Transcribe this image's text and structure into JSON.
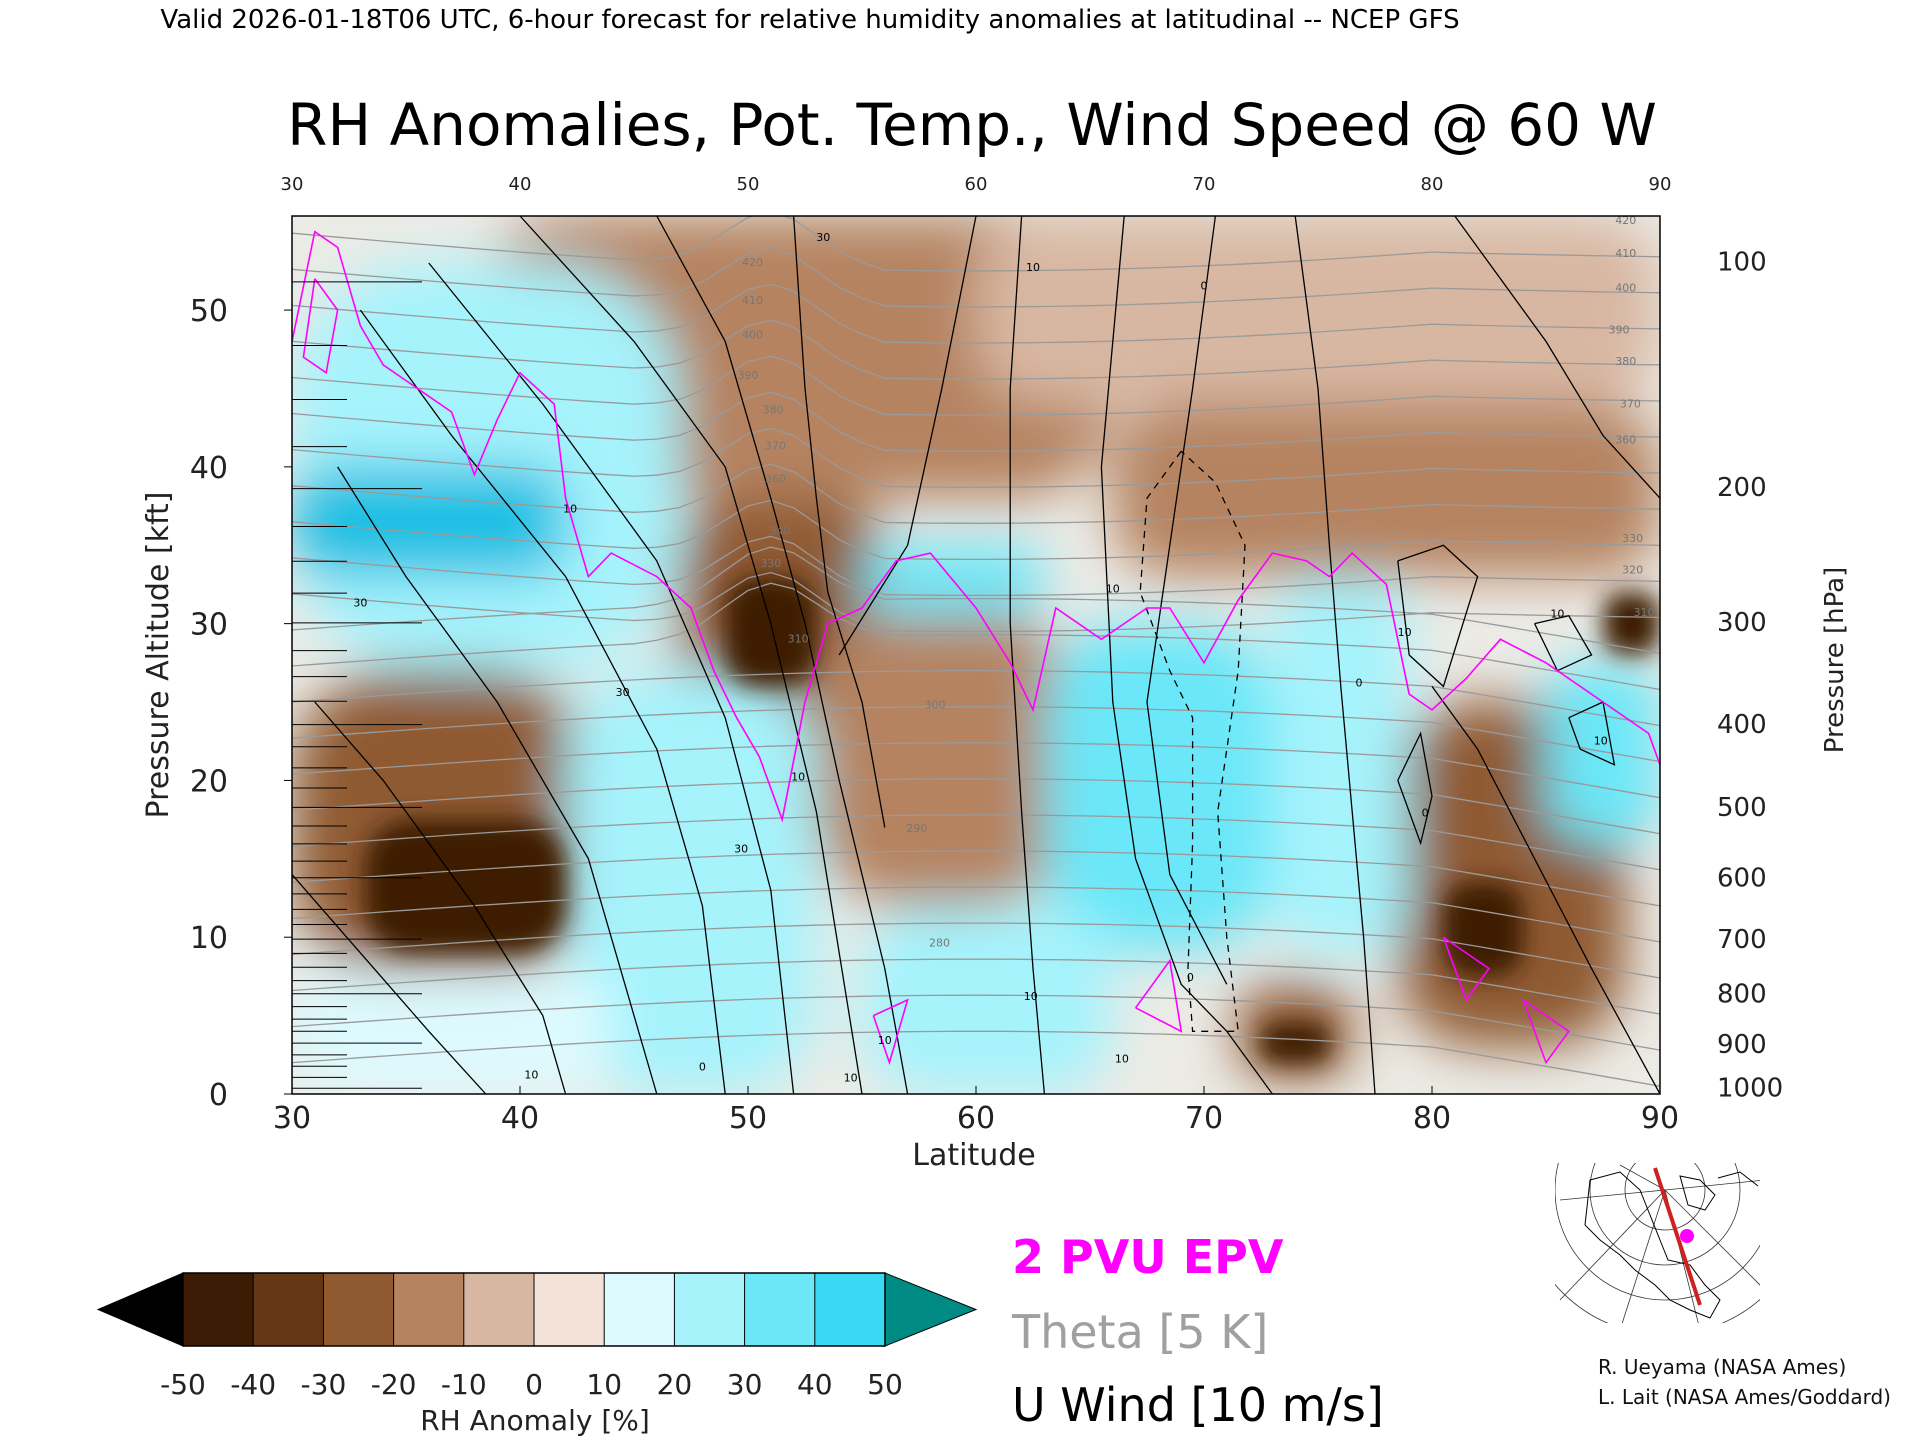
{
  "header": {
    "valid_line": "Valid 2026-01-18T06 UTC, 6-hour forecast for relative humidity anomalies at latitudinal -- NCEP GFS",
    "title": "RH Anomalies, Pot. Temp., Wind Speed @ 60 W"
  },
  "chart_data": {
    "type": "heatmap",
    "title": "RH Anomalies, Pot. Temp., Wind Speed @ 60 W",
    "xlabel": "Latitude",
    "ylabel_left": "Pressure Altitude [kft]",
    "ylabel_right": "Pressure [hPa]",
    "xlim": [
      30,
      90
    ],
    "ylim": [
      0,
      56
    ],
    "x_ticks": [
      "30",
      "40",
      "50",
      "60",
      "70",
      "80",
      "90"
    ],
    "x_top_ticks": [
      "30",
      "40",
      "50",
      "60",
      "70",
      "80",
      "90"
    ],
    "y_left_ticks": [
      "0",
      "10",
      "20",
      "30",
      "40",
      "50"
    ],
    "y_right_ticks": [
      {
        "label": "100",
        "kft": 53.1
      },
      {
        "label": "200",
        "kft": 38.7
      },
      {
        "label": "300",
        "kft": 30.1
      },
      {
        "label": "400",
        "kft": 23.6
      },
      {
        "label": "500",
        "kft": 18.3
      },
      {
        "label": "600",
        "kft": 13.8
      },
      {
        "label": "700",
        "kft": 9.9
      },
      {
        "label": "800",
        "kft": 6.4
      },
      {
        "label": "900",
        "kft": 3.2
      },
      {
        "label": "1000",
        "kft": 0.4
      }
    ],
    "theta_contour_labels": [
      {
        "label": "420",
        "x": 50.2,
        "y": 52.8
      },
      {
        "label": "410",
        "x": 50.2,
        "y": 50.4
      },
      {
        "label": "400",
        "x": 50.2,
        "y": 48.2
      },
      {
        "label": "390",
        "x": 50.0,
        "y": 45.6
      },
      {
        "label": "380",
        "x": 51.1,
        "y": 43.4
      },
      {
        "label": "370",
        "x": 51.2,
        "y": 41.1
      },
      {
        "label": "360",
        "x": 51.2,
        "y": 39.0
      },
      {
        "label": "340",
        "x": 51.4,
        "y": 35.7
      },
      {
        "label": "330",
        "x": 51.0,
        "y": 33.6
      },
      {
        "label": "310",
        "x": 52.2,
        "y": 28.8
      },
      {
        "label": "300",
        "x": 58.2,
        "y": 24.6
      },
      {
        "label": "290",
        "x": 57.4,
        "y": 16.7
      },
      {
        "label": "280",
        "x": 58.4,
        "y": 9.4
      },
      {
        "label": "420",
        "x": 88.5,
        "y": 55.5
      },
      {
        "label": "410",
        "x": 88.5,
        "y": 53.4
      },
      {
        "label": "400",
        "x": 88.5,
        "y": 51.2
      },
      {
        "label": "390",
        "x": 88.2,
        "y": 48.5
      },
      {
        "label": "380",
        "x": 88.5,
        "y": 46.5
      },
      {
        "label": "370",
        "x": 88.7,
        "y": 43.8
      },
      {
        "label": "360",
        "x": 88.5,
        "y": 41.5
      },
      {
        "label": "330",
        "x": 88.8,
        "y": 35.2
      },
      {
        "label": "320",
        "x": 88.8,
        "y": 33.2
      },
      {
        "label": "310",
        "x": 89.3,
        "y": 30.5
      }
    ],
    "wind_contour_labels": [
      {
        "label": "30",
        "x": 53.3,
        "y": 54.4
      },
      {
        "label": "10",
        "x": 62.5,
        "y": 52.5
      },
      {
        "label": "0",
        "x": 70.0,
        "y": 51.3
      },
      {
        "label": "10",
        "x": 42.2,
        "y": 37.1
      },
      {
        "label": "30",
        "x": 33.0,
        "y": 31.1
      },
      {
        "label": "30",
        "x": 44.5,
        "y": 25.4
      },
      {
        "label": "10",
        "x": 52.2,
        "y": 20.0
      },
      {
        "label": "30",
        "x": 49.7,
        "y": 15.4
      },
      {
        "label": "10",
        "x": 66.0,
        "y": 32.0
      },
      {
        "label": "0",
        "x": 76.8,
        "y": 26.0
      },
      {
        "label": "10",
        "x": 78.8,
        "y": 29.2
      },
      {
        "label": "10",
        "x": 85.5,
        "y": 30.4
      },
      {
        "label": "10",
        "x": 87.4,
        "y": 22.3
      },
      {
        "label": "0",
        "x": 79.7,
        "y": 17.7
      },
      {
        "label": "10",
        "x": 62.4,
        "y": 6.0
      },
      {
        "label": "10",
        "x": 66.4,
        "y": 2.0
      },
      {
        "label": "0",
        "x": 69.4,
        "y": 7.2
      },
      {
        "label": "10",
        "x": 40.5,
        "y": 1.0
      },
      {
        "label": "0",
        "x": 48.0,
        "y": 1.5
      },
      {
        "label": "10",
        "x": 56.0,
        "y": 3.2
      },
      {
        "label": "10",
        "x": 54.5,
        "y": 0.8
      }
    ],
    "rh_anomaly_regions": [
      {
        "value": -50,
        "x": [
          33.2,
          42.0
        ],
        "y": [
          9.0,
          17.5
        ]
      },
      {
        "value": -50,
        "x": [
          49.0,
          53.0
        ],
        "y": [
          26.0,
          33.0
        ]
      },
      {
        "value": -50,
        "x": [
          80.5,
          84.0
        ],
        "y": [
          7.5,
          13.5
        ]
      },
      {
        "value": -50,
        "x": [
          87.5,
          90.0
        ],
        "y": [
          28.0,
          32.0
        ]
      },
      {
        "value": -50,
        "x": [
          72.5,
          75.5
        ],
        "y": [
          2.0,
          4.5
        ]
      },
      {
        "value": -35,
        "x": [
          30.0,
          43.0
        ],
        "y": [
          7.5,
          27.0
        ]
      },
      {
        "value": -35,
        "x": [
          47.0,
          56.0
        ],
        "y": [
          23.0,
          38.5
        ]
      },
      {
        "value": -35,
        "x": [
          78.5,
          88.5
        ],
        "y": [
          3.0,
          25.0
        ]
      },
      {
        "value": -35,
        "x": [
          71.5,
          76.5
        ],
        "y": [
          1.0,
          7.0
        ]
      },
      {
        "value": -20,
        "x": [
          38.0,
          66.0
        ],
        "y": [
          38.0,
          56.0
        ]
      },
      {
        "value": -20,
        "x": [
          53.0,
          64.0
        ],
        "y": [
          12.0,
          31.0
        ]
      },
      {
        "value": -20,
        "x": [
          66.0,
          90.0
        ],
        "y": [
          33.0,
          44.0
        ]
      },
      {
        "value": -10,
        "x": [
          60.0,
          90.0
        ],
        "y": [
          44.0,
          56.0
        ]
      },
      {
        "value": 20,
        "x": [
          30.0,
          47.0
        ],
        "y": [
          27.0,
          53.0
        ]
      },
      {
        "value": 45,
        "x": [
          30.0,
          42.0
        ],
        "y": [
          33.0,
          40.0
        ]
      },
      {
        "value": 25,
        "x": [
          55.0,
          63.0
        ],
        "y": [
          30.5,
          35.0
        ]
      },
      {
        "value": 30,
        "x": [
          63.0,
          73.0
        ],
        "y": [
          9.0,
          30.0
        ]
      },
      {
        "value": 20,
        "x": [
          73.0,
          79.0
        ],
        "y": [
          9.0,
          33.0
        ]
      },
      {
        "value": 20,
        "x": [
          42.0,
          53.0
        ],
        "y": [
          0.0,
          27.0
        ]
      },
      {
        "value": 25,
        "x": [
          85.0,
          90.0
        ],
        "y": [
          16.0,
          27.5
        ]
      },
      {
        "value": 15,
        "x": [
          55.0,
          66.0
        ],
        "y": [
          0.0,
          12.0
        ]
      },
      {
        "value": 10,
        "x": [
          30.0,
          44.0
        ],
        "y": [
          0.0,
          8.0
        ]
      }
    ]
  },
  "legend": {
    "epv_label": "2 PVU EPV",
    "theta_label": "Theta [5 K]",
    "wind_label": "U Wind [10 m/s]",
    "epv_color": "#ff00ff",
    "theta_color": "#a0a0a0"
  },
  "colorbar": {
    "label": "RH Anomaly [%]",
    "ticks": [
      "-50",
      "-40",
      "-30",
      "-20",
      "-10",
      "0",
      "10",
      "20",
      "30",
      "40",
      "50"
    ],
    "colors": [
      "#000000",
      "#3d1c06",
      "#653714",
      "#8f5a30",
      "#b58360",
      "#d8b7a2",
      "#f2e2d8",
      "#ddfafe",
      "#a6f3fc",
      "#6be7f8",
      "#3bd8f4",
      "#17bfe3",
      "#0797bf",
      "#008a84"
    ]
  },
  "inset_map": {
    "section_color": "#cc2222",
    "marker_color": "#ff00ff"
  },
  "credits": {
    "line1": "R. Ueyama (NASA Ames)",
    "line2": "L. Lait (NASA Ames/Goddard)"
  }
}
